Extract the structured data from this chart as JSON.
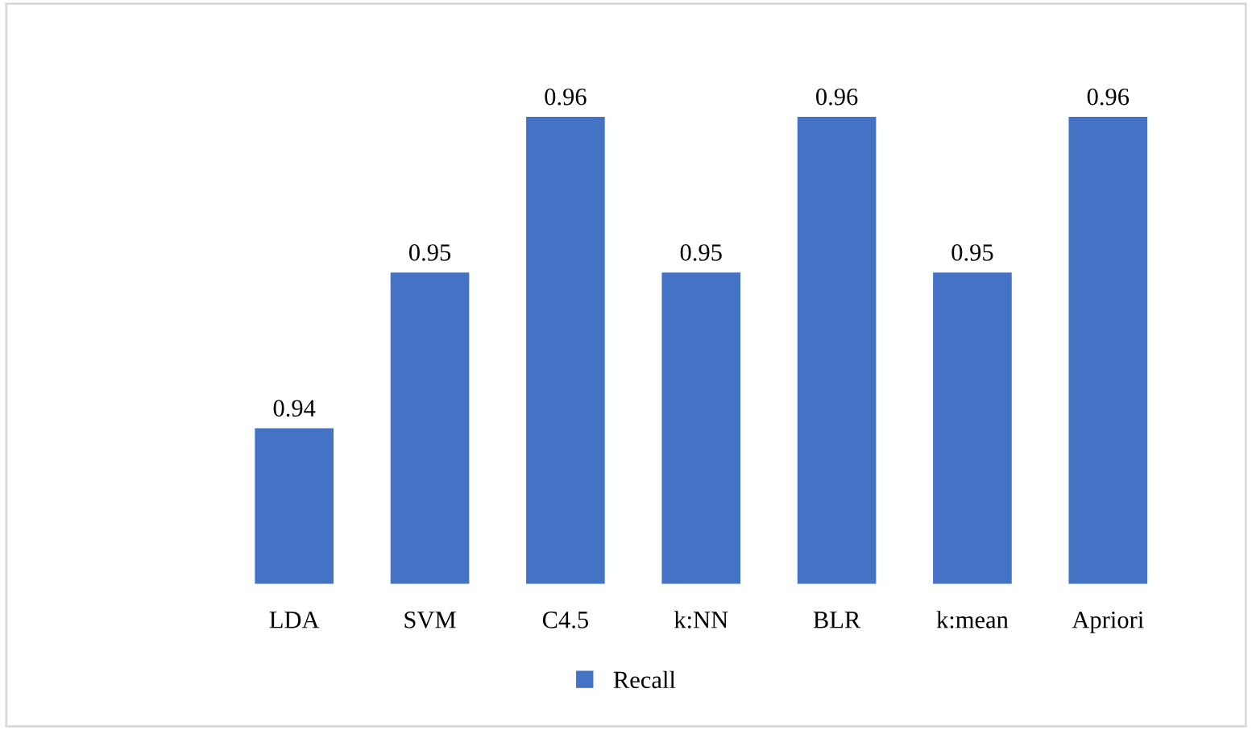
{
  "chart_data": {
    "type": "bar",
    "categories": [
      "LDA",
      "SVM",
      "C4.5",
      "k:NN",
      "BLR",
      "k:mean",
      "Apriori"
    ],
    "series": [
      {
        "name": "Recall",
        "color": "#4472c4",
        "values": [
          0.94,
          0.95,
          0.96,
          0.95,
          0.96,
          0.95,
          0.96
        ]
      }
    ],
    "data_labels": true,
    "ylim": [
      0.93,
      0.96
    ],
    "tick_labels": false,
    "legend": "bottom",
    "grid": false
  }
}
